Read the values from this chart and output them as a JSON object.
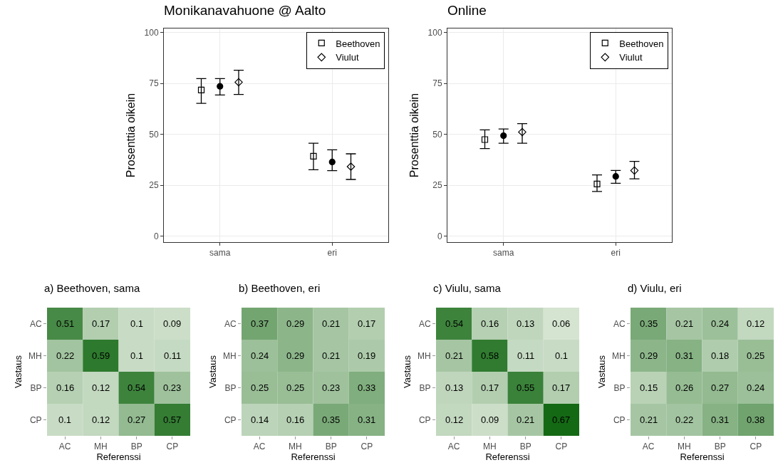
{
  "chart_data": [
    {
      "type": "scatter",
      "title": "Monikanavahuone @ Aalto",
      "ylabel": "Prosenttia oikein",
      "categories": [
        "sama",
        "eri"
      ],
      "ylim": [
        -3,
        102
      ],
      "yticks": [
        0,
        25,
        50,
        75,
        100
      ],
      "grid": true,
      "legend": "top right",
      "series": [
        {
          "name": "Beethoven",
          "color": "#000000",
          "marker": "square",
          "values": [
            71.8,
            39.2
          ],
          "errors": [
            [
              65.2,
              77.4
            ],
            [
              32.6,
              45.6
            ]
          ]
        },
        {
          "color": "#000000",
          "marker": "circle",
          "values": [
            73.6,
            36.4
          ],
          "errors": [
            [
              69.3,
              77.4
            ],
            [
              32.1,
              42.4
            ]
          ]
        },
        {
          "name": "Viulut",
          "color": "#000000",
          "marker": "diamond",
          "values": [
            75.6,
            34.1
          ],
          "errors": [
            [
              69.6,
              81.5
            ],
            [
              27.8,
              40.4
            ]
          ]
        }
      ]
    },
    {
      "type": "scatter",
      "title": "Online",
      "ylabel": "Prosenttia oikein",
      "categories": [
        "sama",
        "eri"
      ],
      "ylim": [
        -3,
        102
      ],
      "yticks": [
        0,
        25,
        50,
        75,
        100
      ],
      "grid": true,
      "legend": "top right",
      "series": [
        {
          "name": "Beethoven",
          "color": "#000000",
          "marker": "square",
          "values": [
            47.4,
            25.6
          ],
          "errors": [
            [
              43,
              52.2
            ],
            [
              21.9,
              30
            ]
          ]
        },
        {
          "color": "#000000",
          "marker": "circle",
          "values": [
            49.3,
            29.3
          ],
          "errors": [
            [
              45.6,
              52.6
            ],
            [
              25.9,
              32.2
            ]
          ]
        },
        {
          "name": "Viulut",
          "color": "#000000",
          "marker": "diamond",
          "values": [
            51.1,
            32.2
          ],
          "errors": [
            [
              45.6,
              55.2
            ],
            [
              28.1,
              36.7
            ]
          ]
        }
      ]
    },
    {
      "type": "heatmap",
      "title": "a) Beethoven, sama",
      "xlabel": "Referenssi",
      "ylabel": "Vastaus",
      "categories": [
        "AC",
        "MH",
        "BP",
        "CP"
      ],
      "y_categories": [
        "AC",
        "MH",
        "BP",
        "CP"
      ],
      "data_labels": true,
      "cells": [
        [
          0.51,
          0.17,
          0.1,
          0.09
        ],
        [
          0.22,
          0.59,
          0.1,
          0.11
        ],
        [
          0.16,
          0.12,
          0.54,
          0.23
        ],
        [
          0.1,
          0.12,
          0.27,
          0.57
        ]
      ]
    },
    {
      "type": "heatmap",
      "title": "b) Beethoven, eri",
      "xlabel": "Referenssi",
      "ylabel": "Vastaus",
      "categories": [
        "AC",
        "MH",
        "BP",
        "CP"
      ],
      "y_categories": [
        "AC",
        "MH",
        "BP",
        "CP"
      ],
      "data_labels": true,
      "cells": [
        [
          0.37,
          0.29,
          0.21,
          0.17
        ],
        [
          0.24,
          0.29,
          0.21,
          0.19
        ],
        [
          0.25,
          0.25,
          0.23,
          0.33
        ],
        [
          0.14,
          0.16,
          0.35,
          0.31
        ]
      ]
    },
    {
      "type": "heatmap",
      "title": "c) Viulu, sama",
      "xlabel": "Referenssi",
      "ylabel": "Vastaus",
      "categories": [
        "AC",
        "MH",
        "BP",
        "CP"
      ],
      "y_categories": [
        "AC",
        "MH",
        "BP",
        "CP"
      ],
      "data_labels": true,
      "cells": [
        [
          0.54,
          0.16,
          0.13,
          0.06
        ],
        [
          0.21,
          0.58,
          0.11,
          0.1
        ],
        [
          0.13,
          0.17,
          0.55,
          0.17
        ],
        [
          0.12,
          0.09,
          0.21,
          0.67
        ]
      ]
    },
    {
      "type": "heatmap",
      "title": "d) Viulu, eri",
      "xlabel": "Referenssi",
      "ylabel": "Vastaus",
      "categories": [
        "AC",
        "MH",
        "BP",
        "CP"
      ],
      "y_categories": [
        "AC",
        "MH",
        "BP",
        "CP"
      ],
      "data_labels": true,
      "cells": [
        [
          0.35,
          0.21,
          0.24,
          0.12
        ],
        [
          0.29,
          0.31,
          0.18,
          0.25
        ],
        [
          0.15,
          0.26,
          0.27,
          0.24
        ],
        [
          0.21,
          0.22,
          0.31,
          0.38
        ]
      ]
    }
  ]
}
